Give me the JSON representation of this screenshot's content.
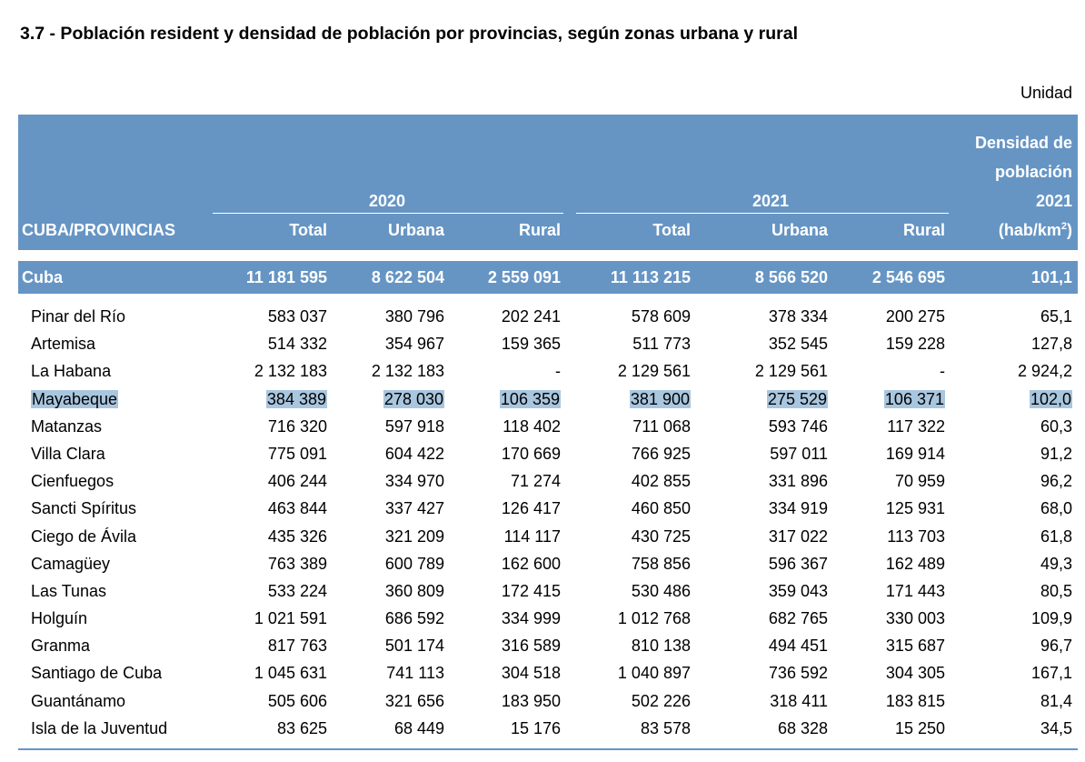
{
  "title": "3.7 - Población resident y densidad de población por provincias, según zonas urbana y rural",
  "unit_label": "Unidad",
  "header": {
    "province_col": "CUBA/PROVINCIAS",
    "year_2020": "2020",
    "year_2021": "2021",
    "total": "Total",
    "urbana": "Urbana",
    "rural": "Rural",
    "density_line1": "Densidad de",
    "density_line2": "población",
    "density_line3": "2021",
    "density_line4": "(hab/km",
    "density_sup": "2",
    "density_close": ")"
  },
  "cuba": {
    "name": "Cuba",
    "t2020": "11 181 595",
    "u2020": "8 622 504",
    "r2020": "2 559 091",
    "t2021": "11 113 215",
    "u2021": "8 566 520",
    "r2021": "2 546 695",
    "dens": "101,1"
  },
  "rows": [
    {
      "name": "Pinar del Río",
      "t2020": "583 037",
      "u2020": "380 796",
      "r2020": "202 241",
      "t2021": "578 609",
      "u2021": "378 334",
      "r2021": "200 275",
      "dens": "65,1"
    },
    {
      "name": "Artemisa",
      "t2020": "514 332",
      "u2020": "354 967",
      "r2020": "159 365",
      "t2021": "511 773",
      "u2021": "352 545",
      "r2021": "159 228",
      "dens": "127,8"
    },
    {
      "name": "La Habana",
      "t2020": "2 132 183",
      "u2020": "2 132 183",
      "r2020": "-",
      "t2021": "2 129 561",
      "u2021": "2 129 561",
      "r2021": "-",
      "dens": "2 924,2"
    },
    {
      "name": "Mayabeque",
      "t2020": "384 389",
      "u2020": "278 030",
      "r2020": "106 359",
      "t2021": "381 900",
      "u2021": "275 529",
      "r2021": "106 371",
      "dens": "102,0"
    },
    {
      "name": "Matanzas",
      "t2020": "716 320",
      "u2020": "597 918",
      "r2020": "118 402",
      "t2021": "711 068",
      "u2021": "593 746",
      "r2021": "117 322",
      "dens": "60,3"
    },
    {
      "name": "Villa Clara",
      "t2020": "775 091",
      "u2020": "604 422",
      "r2020": "170 669",
      "t2021": "766 925",
      "u2021": "597 011",
      "r2021": "169 914",
      "dens": "91,2"
    },
    {
      "name": "Cienfuegos",
      "t2020": "406 244",
      "u2020": "334 970",
      "r2020": "71 274",
      "t2021": "402 855",
      "u2021": "331 896",
      "r2021": "70 959",
      "dens": "96,2"
    },
    {
      "name": "Sancti Spíritus",
      "t2020": "463 844",
      "u2020": "337 427",
      "r2020": "126 417",
      "t2021": "460 850",
      "u2021": "334 919",
      "r2021": "125 931",
      "dens": "68,0"
    },
    {
      "name": "Ciego de Ávila",
      "t2020": "435 326",
      "u2020": "321 209",
      "r2020": "114 117",
      "t2021": "430 725",
      "u2021": "317 022",
      "r2021": "113 703",
      "dens": "61,8"
    },
    {
      "name": "Camagüey",
      "t2020": "763 389",
      "u2020": "600 789",
      "r2020": "162 600",
      "t2021": "758 856",
      "u2021": "596 367",
      "r2021": "162 489",
      "dens": "49,3"
    },
    {
      "name": "Las Tunas",
      "t2020": "533 224",
      "u2020": "360 809",
      "r2020": "172 415",
      "t2021": "530 486",
      "u2021": "359 043",
      "r2021": "171 443",
      "dens": "80,5"
    },
    {
      "name": "Holguín",
      "t2020": "1 021 591",
      "u2020": "686 592",
      "r2020": "334 999",
      "t2021": "1 012 768",
      "u2021": "682 765",
      "r2021": "330 003",
      "dens": "109,9"
    },
    {
      "name": "Granma",
      "t2020": "817 763",
      "u2020": "501 174",
      "r2020": "316 589",
      "t2021": "810 138",
      "u2021": "494 451",
      "r2021": "315 687",
      "dens": "96,7"
    },
    {
      "name": "Santiago de Cuba",
      "t2020": "1 045 631",
      "u2020": "741 113",
      "r2020": "304 518",
      "t2021": "1 040 897",
      "u2021": "736 592",
      "r2021": "304 305",
      "dens": "167,1"
    },
    {
      "name": "Guantánamo",
      "t2020": "505 606",
      "u2020": "321 656",
      "r2020": "183 950",
      "t2021": "502 226",
      "u2021": "318 411",
      "r2021": "183 815",
      "dens": "81,4"
    },
    {
      "name": "Isla de la Juventud",
      "t2020": "83 625",
      "u2020": "68 449",
      "r2020": "15 176",
      "t2021": "83 578",
      "u2021": "68 328",
      "r2021": "15 250",
      "dens": "34,5"
    }
  ],
  "highlight_row_name": "Mayabeque",
  "colors": {
    "header_bg": "#6695c4",
    "highlight": "#a9c6df"
  }
}
